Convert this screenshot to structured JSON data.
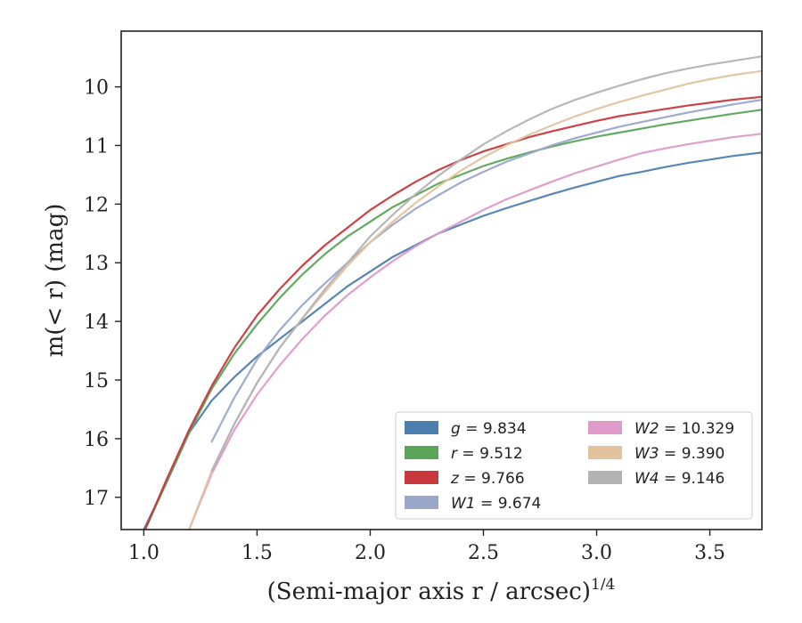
{
  "chart_data": {
    "type": "line",
    "xlabel": "(Semi-major axis r / arcsec)",
    "xlabel_exponent": "1/4",
    "ylabel": "m(< r) (mag)",
    "xlim": [
      0.9,
      3.73
    ],
    "ylim": [
      17.55,
      9.05
    ],
    "y_inverted": true,
    "grid": false,
    "legend_position": "lower-right",
    "x_ticks": [
      "1.0",
      "1.5",
      "2.0",
      "2.5",
      "3.0",
      "3.5"
    ],
    "y_ticks": [
      "10",
      "11",
      "12",
      "13",
      "14",
      "15",
      "16",
      "17"
    ],
    "series": [
      {
        "name": "g = 9.834",
        "legend_var": "g",
        "legend_value": "9.834",
        "color": "#4c7fb0",
        "x": [
          1.0,
          1.1,
          1.2,
          1.3,
          1.4,
          1.5,
          1.6,
          1.7,
          1.8,
          1.9,
          2.0,
          2.1,
          2.2,
          2.3,
          2.4,
          2.5,
          2.6,
          2.7,
          2.8,
          2.9,
          3.0,
          3.1,
          3.2,
          3.3,
          3.4,
          3.5,
          3.6,
          3.73
        ],
        "y": [
          17.55,
          16.75,
          15.9,
          15.35,
          14.95,
          14.6,
          14.3,
          14.0,
          13.7,
          13.4,
          13.15,
          12.9,
          12.7,
          12.5,
          12.35,
          12.2,
          12.07,
          11.95,
          11.83,
          11.72,
          11.62,
          11.52,
          11.45,
          11.37,
          11.3,
          11.24,
          11.18,
          11.12
        ]
      },
      {
        "name": "r = 9.512",
        "legend_var": "r",
        "legend_value": "9.512",
        "color": "#5aa55a",
        "x": [
          1.0,
          1.1,
          1.2,
          1.3,
          1.4,
          1.5,
          1.6,
          1.7,
          1.8,
          1.9,
          2.0,
          2.1,
          2.2,
          2.3,
          2.4,
          2.5,
          2.6,
          2.7,
          2.8,
          2.9,
          3.0,
          3.1,
          3.2,
          3.3,
          3.4,
          3.5,
          3.6,
          3.73
        ],
        "y": [
          17.6,
          16.75,
          15.9,
          15.15,
          14.55,
          14.05,
          13.6,
          13.2,
          12.85,
          12.55,
          12.3,
          12.05,
          11.85,
          11.65,
          11.5,
          11.35,
          11.23,
          11.12,
          11.02,
          10.93,
          10.85,
          10.78,
          10.71,
          10.64,
          10.58,
          10.52,
          10.46,
          10.39
        ]
      },
      {
        "name": "z = 9.766",
        "legend_var": "z",
        "legend_value": "9.766",
        "color": "#c8383d",
        "x": [
          1.0,
          1.1,
          1.2,
          1.3,
          1.4,
          1.5,
          1.6,
          1.7,
          1.8,
          1.9,
          2.0,
          2.1,
          2.2,
          2.3,
          2.4,
          2.5,
          2.6,
          2.7,
          2.8,
          2.9,
          3.0,
          3.1,
          3.2,
          3.3,
          3.4,
          3.5,
          3.6,
          3.73
        ],
        "y": [
          17.6,
          16.7,
          15.85,
          15.1,
          14.45,
          13.9,
          13.45,
          13.05,
          12.7,
          12.4,
          12.1,
          11.85,
          11.62,
          11.42,
          11.25,
          11.1,
          10.98,
          10.86,
          10.76,
          10.67,
          10.58,
          10.5,
          10.44,
          10.38,
          10.32,
          10.27,
          10.22,
          10.17
        ]
      },
      {
        "name": "W1 = 9.674",
        "legend_var": "W1",
        "legend_value": "9.674",
        "color": "#9aa7cb",
        "x": [
          1.3,
          1.4,
          1.5,
          1.6,
          1.7,
          1.8,
          1.9,
          2.0,
          2.1,
          2.2,
          2.3,
          2.4,
          2.5,
          2.6,
          2.7,
          2.8,
          2.9,
          3.0,
          3.1,
          3.2,
          3.3,
          3.4,
          3.5,
          3.6,
          3.73
        ],
        "y": [
          16.05,
          15.3,
          14.65,
          14.15,
          13.72,
          13.35,
          13.0,
          12.65,
          12.35,
          12.08,
          11.85,
          11.63,
          11.45,
          11.28,
          11.14,
          11.0,
          10.88,
          10.78,
          10.68,
          10.6,
          10.52,
          10.44,
          10.37,
          10.3,
          10.22
        ]
      },
      {
        "name": "W2 = 10.329",
        "legend_var": "W2",
        "legend_value": "10.329",
        "color": "#de9ac8",
        "x": [
          1.2,
          1.3,
          1.4,
          1.5,
          1.6,
          1.7,
          1.8,
          1.9,
          2.0,
          2.1,
          2.2,
          2.3,
          2.4,
          2.5,
          2.6,
          2.7,
          2.8,
          2.9,
          3.0,
          3.1,
          3.2,
          3.3,
          3.4,
          3.5,
          3.6,
          3.73
        ],
        "y": [
          17.55,
          16.6,
          15.85,
          15.25,
          14.75,
          14.3,
          13.9,
          13.55,
          13.25,
          12.97,
          12.72,
          12.5,
          12.3,
          12.1,
          11.92,
          11.77,
          11.62,
          11.48,
          11.36,
          11.24,
          11.13,
          11.05,
          10.98,
          10.92,
          10.86,
          10.8
        ]
      },
      {
        "name": "W3 = 9.390",
        "legend_var": "W3",
        "legend_value": "9.390",
        "color": "#e3c39e",
        "x": [
          1.2,
          1.3,
          1.4,
          1.5,
          1.6,
          1.7,
          1.8,
          1.9,
          2.0,
          2.1,
          2.2,
          2.3,
          2.4,
          2.5,
          2.6,
          2.7,
          2.8,
          2.9,
          3.0,
          3.1,
          3.2,
          3.3,
          3.4,
          3.5,
          3.6,
          3.73
        ],
        "y": [
          17.55,
          16.55,
          15.75,
          15.05,
          14.45,
          13.95,
          13.5,
          13.05,
          12.65,
          12.3,
          11.98,
          11.7,
          11.43,
          11.2,
          11.0,
          10.82,
          10.66,
          10.51,
          10.38,
          10.26,
          10.15,
          10.05,
          9.95,
          9.87,
          9.8,
          9.73
        ]
      },
      {
        "name": "W4 = 9.146",
        "legend_var": "W4",
        "legend_value": "9.146",
        "color": "#b3b3b3",
        "x": [
          1.3,
          1.4,
          1.5,
          1.6,
          1.7,
          1.8,
          1.9,
          2.0,
          2.1,
          2.2,
          2.3,
          2.4,
          2.5,
          2.6,
          2.7,
          2.8,
          2.9,
          3.0,
          3.1,
          3.2,
          3.3,
          3.4,
          3.5,
          3.6,
          3.73
        ],
        "y": [
          16.55,
          15.75,
          15.05,
          14.45,
          13.95,
          13.45,
          13.0,
          12.55,
          12.18,
          11.83,
          11.52,
          11.24,
          10.98,
          10.76,
          10.56,
          10.38,
          10.23,
          10.1,
          9.98,
          9.87,
          9.77,
          9.69,
          9.62,
          9.56,
          9.48
        ]
      }
    ]
  }
}
